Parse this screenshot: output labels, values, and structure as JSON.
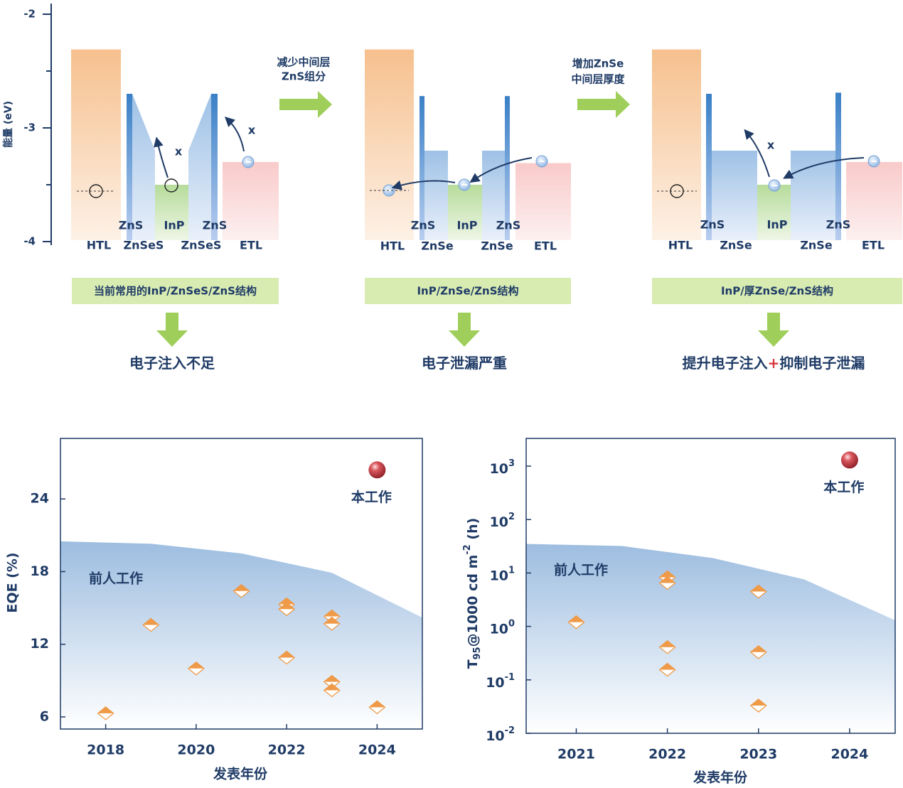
{
  "diagram": {
    "axis_label": "能量 (eV)",
    "ylim": [
      -2,
      -4
    ],
    "yticks": [
      -2,
      -3,
      -4
    ],
    "minor_yticks": [
      -2.5,
      -3.5
    ],
    "steps": [
      [
        "减少中间层",
        "ZnS组分"
      ],
      [
        "增加ZnSe",
        "中间层厚度"
      ]
    ],
    "panels": [
      {
        "bands": [
          {
            "level": -2.31
          },
          {
            "level": -2.7
          },
          {
            "level": -2.7,
            "level_end": -3.2
          },
          {
            "level": -3.5
          },
          {
            "level": -3.2,
            "level_end": -2.7
          },
          {
            "level": -2.7
          },
          {
            "level": -3.3
          }
        ],
        "labels": [
          "ZnS",
          "InP",
          "ZnS",
          "HTL",
          "ZnSeS",
          "ZnSeS",
          "ETL"
        ],
        "blocked": [
          "x",
          "x"
        ],
        "caption": "当前常用的InP/ZnSeS/ZnS结构",
        "result": [
          "电子注入不足"
        ]
      },
      {
        "bands": [
          {
            "level": -2.31
          },
          {
            "level": -2.72
          },
          {
            "level": -3.2
          },
          {
            "level": -3.5
          },
          {
            "level": -3.2
          },
          {
            "level": -2.72
          },
          {
            "level": -3.31
          }
        ],
        "labels": [
          "ZnS",
          "InP",
          "ZnS",
          "HTL",
          "ZnSe",
          "ZnSe",
          "ETL"
        ],
        "blocked": [],
        "caption": "InP/ZnSe/ZnS结构",
        "result": [
          "电子泄漏严重"
        ]
      },
      {
        "bands": [
          {
            "level": -2.31
          },
          {
            "level": -2.7
          },
          {
            "level": -3.2
          },
          {
            "level": -3.5
          },
          {
            "level": -3.2
          },
          {
            "level": -2.69
          },
          {
            "level": -3.3
          }
        ],
        "labels": [
          "ZnS",
          "InP",
          "ZnS",
          "HTL",
          "ZnSe",
          "ZnSe",
          "ETL"
        ],
        "blocked": [
          "x"
        ],
        "caption": "InP/厚ZnSe/ZnS结构",
        "result": [
          "提升电子注入",
          "+",
          "抑制电子泄漏"
        ]
      }
    ]
  },
  "chart_data": [
    {
      "type": "scatter",
      "x_label": "发表年份",
      "y_label": "EQE (%)",
      "xlim": [
        2017,
        2025
      ],
      "xticks": [
        2018,
        2020,
        2022,
        2024
      ],
      "ylim": [
        5,
        29
      ],
      "yticks": [
        6,
        12,
        18,
        24
      ],
      "region": {
        "color": "#9dbde0",
        "x": [
          2017,
          2019,
          2021,
          2023,
          2025
        ],
        "y": [
          20.5,
          20.3,
          19.5,
          17.9,
          14.2
        ]
      },
      "series": [
        {
          "name": "前人工作",
          "color": "#ee9a48",
          "x": [
            2018,
            2019,
            2020,
            2021,
            2022,
            2022,
            2022,
            2023,
            2023,
            2023,
            2023,
            2024
          ],
          "values": [
            6.3,
            13.6,
            10.0,
            16.4,
            15.3,
            14.9,
            10.9,
            14.3,
            13.7,
            8.9,
            8.2,
            6.8
          ]
        },
        {
          "name": "本工作",
          "color": "#c0393f",
          "x": [
            2024
          ],
          "values": [
            26.4
          ]
        }
      ]
    },
    {
      "type": "scatter",
      "x_label": "发表年份",
      "y_label": "T_{95}@1000 cd m^{-2} (h)",
      "log_y": true,
      "xlim": [
        2020.45,
        2024.5
      ],
      "xticks": [
        2021,
        2022,
        2023,
        2024
      ],
      "ylim": [
        0.01,
        3300
      ],
      "yticks": [
        {
          "value": 0.01,
          "label": "10^{-2}"
        },
        {
          "value": 0.1,
          "label": "10^{-1}"
        },
        {
          "value": 1,
          "label": "10^{0}"
        },
        {
          "value": 10,
          "label": "10^{1}"
        },
        {
          "value": 100,
          "label": "10^{2}"
        },
        {
          "value": 1000,
          "label": "10^{3}"
        }
      ],
      "region": {
        "color": "#9dbde0",
        "x": [
          2020.45,
          2021.5,
          2022.5,
          2023.5,
          2024.5
        ],
        "y": [
          35,
          32,
          19,
          7.6,
          1.3
        ]
      },
      "series": [
        {
          "name": "前人工作",
          "color": "#ee9a48",
          "x": [
            2021,
            2022,
            2022,
            2022,
            2022,
            2023,
            2023,
            2023
          ],
          "values": [
            1.2,
            8.3,
            6.5,
            0.41,
            0.155,
            4.5,
            0.33,
            0.033
          ]
        },
        {
          "name": "本工作",
          "color": "#c0393f",
          "x": [
            2024
          ],
          "values": [
            1300
          ]
        }
      ]
    }
  ]
}
